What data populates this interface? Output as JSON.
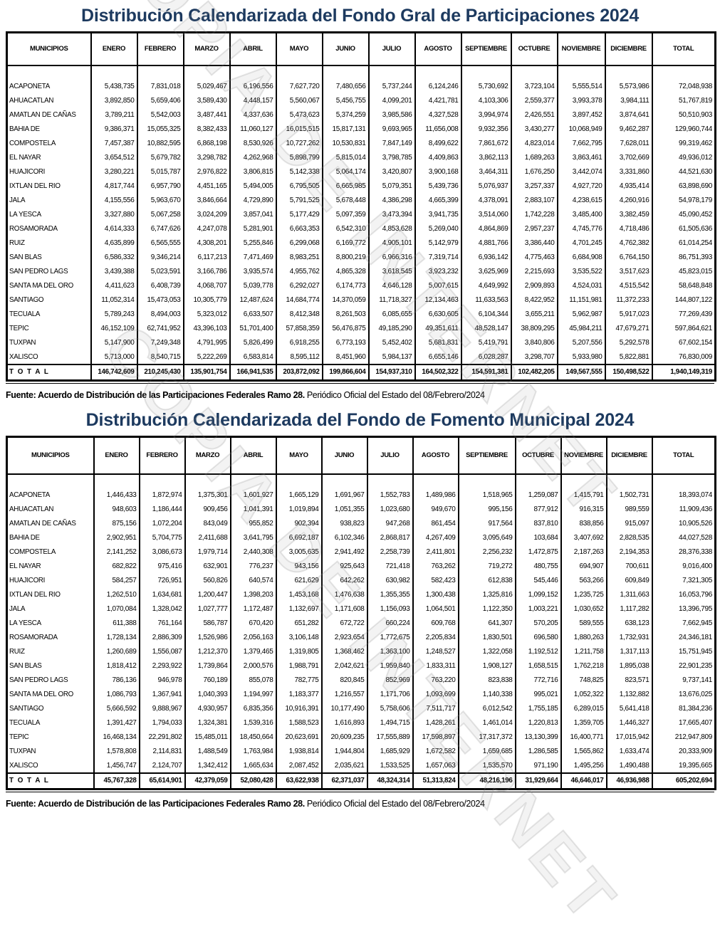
{
  "watermark": "COPIA DE INTERNET",
  "theme": {
    "title_color": "#1d3a5f",
    "border_color": "#000000"
  },
  "sections": [
    {
      "id": "t1",
      "title": "Distribución Calendarizada del Fondo Gral de Participaciones 2024",
      "columns": [
        "MUNICIPIOS",
        "ENERO",
        "FEBRERO",
        "MARZO",
        "ABRIL",
        "MAYO",
        "JUNIO",
        "JULIO",
        "AGOSTO",
        "SEPTIEMBRE",
        "OCTUBRE",
        "NOVIEMBRE",
        "DICIEMBRE",
        "TOTAL"
      ],
      "rows": [
        [
          "ACAPONETA",
          "5,438,735",
          "7,831,018",
          "5,029,467",
          "6,196,556",
          "7,627,720",
          "7,480,656",
          "5,737,244",
          "6,124,246",
          "5,730,692",
          "3,723,104",
          "5,555,514",
          "5,573,986",
          "72,048,938"
        ],
        [
          "AHUACATLAN",
          "3,892,850",
          "5,659,406",
          "3,589,430",
          "4,448,157",
          "5,560,067",
          "5,456,755",
          "4,099,201",
          "4,421,781",
          "4,103,306",
          "2,559,377",
          "3,993,378",
          "3,984,111",
          "51,767,819"
        ],
        [
          "AMATLAN DE CAÑAS",
          "3,789,211",
          "5,542,003",
          "3,487,441",
          "4,337,636",
          "5,473,623",
          "5,374,259",
          "3,985,586",
          "4,327,528",
          "3,994,974",
          "2,426,551",
          "3,897,452",
          "3,874,641",
          "50,510,903"
        ],
        [
          "BAHIA DE",
          "9,386,371",
          "15,055,325",
          "8,382,433",
          "11,060,127",
          "16,015,515",
          "15,817,131",
          "9,693,965",
          "11,656,008",
          "9,932,356",
          "3,430,277",
          "10,068,949",
          "9,462,287",
          "129,960,744"
        ],
        [
          "COMPOSTELA",
          "7,457,387",
          "10,882,595",
          "6,868,198",
          "8,530,926",
          "10,727,262",
          "10,530,831",
          "7,847,149",
          "8,499,622",
          "7,861,672",
          "4,823,014",
          "7,662,795",
          "7,628,011",
          "99,319,462"
        ],
        [
          "EL NAYAR",
          "3,654,512",
          "5,679,782",
          "3,298,782",
          "4,262,968",
          "5,898,799",
          "5,815,014",
          "3,798,785",
          "4,409,863",
          "3,862,113",
          "1,689,263",
          "3,863,461",
          "3,702,669",
          "49,936,012"
        ],
        [
          "HUAJICORI",
          "3,280,221",
          "5,015,787",
          "2,976,822",
          "3,806,815",
          "5,142,338",
          "5,064,174",
          "3,420,807",
          "3,900,168",
          "3,464,311",
          "1,676,250",
          "3,442,074",
          "3,331,860",
          "44,521,630"
        ],
        [
          "IXTLAN DEL RIO",
          "4,817,744",
          "6,957,790",
          "4,451,165",
          "5,494,005",
          "6,795,505",
          "6,665,985",
          "5,079,351",
          "5,439,736",
          "5,076,937",
          "3,257,337",
          "4,927,720",
          "4,935,414",
          "63,898,690"
        ],
        [
          "JALA",
          "4,155,556",
          "5,963,670",
          "3,846,664",
          "4,729,890",
          "5,791,525",
          "5,678,448",
          "4,386,298",
          "4,665,399",
          "4,378,091",
          "2,883,107",
          "4,238,615",
          "4,260,916",
          "54,978,179"
        ],
        [
          "LA YESCA",
          "3,327,880",
          "5,067,258",
          "3,024,209",
          "3,857,041",
          "5,177,429",
          "5,097,359",
          "3,473,394",
          "3,941,735",
          "3,514,060",
          "1,742,228",
          "3,485,400",
          "3,382,459",
          "45,090,452"
        ],
        [
          "ROSAMORADA",
          "4,614,333",
          "6,747,626",
          "4,247,078",
          "5,281,901",
          "6,663,353",
          "6,542,310",
          "4,853,628",
          "5,269,040",
          "4,864,869",
          "2,957,237",
          "4,745,776",
          "4,718,486",
          "61,505,636"
        ],
        [
          "RUIZ",
          "4,635,899",
          "6,565,555",
          "4,308,201",
          "5,255,846",
          "6,299,068",
          "6,169,772",
          "4,905,101",
          "5,142,979",
          "4,881,766",
          "3,386,440",
          "4,701,245",
          "4,762,382",
          "61,014,254"
        ],
        [
          "SAN BLAS",
          "6,586,332",
          "9,346,214",
          "6,117,213",
          "7,471,469",
          "8,983,251",
          "8,800,219",
          "6,966,316",
          "7,319,714",
          "6,936,142",
          "4,775,463",
          "6,684,908",
          "6,764,150",
          "86,751,393"
        ],
        [
          "SAN PEDRO LAGS",
          "3,439,388",
          "5,023,591",
          "3,166,786",
          "3,935,574",
          "4,955,762",
          "4,865,328",
          "3,618,545",
          "3,923,232",
          "3,625,969",
          "2,215,693",
          "3,535,522",
          "3,517,623",
          "45,823,015"
        ],
        [
          "SANTA MA DEL ORO",
          "4,411,623",
          "6,408,739",
          "4,068,707",
          "5,039,778",
          "6,292,027",
          "6,174,773",
          "4,646,128",
          "5,007,615",
          "4,649,992",
          "2,909,893",
          "4,524,031",
          "4,515,542",
          "58,648,848"
        ],
        [
          "SANTIAGO",
          "11,052,314",
          "15,473,053",
          "10,305,779",
          "12,487,624",
          "14,684,774",
          "14,370,059",
          "11,718,327",
          "12,134,463",
          "11,633,563",
          "8,422,952",
          "11,151,981",
          "11,372,233",
          "144,807,122"
        ],
        [
          "TECUALA",
          "5,789,243",
          "8,494,003",
          "5,323,012",
          "6,633,507",
          "8,412,348",
          "8,261,503",
          "6,085,655",
          "6,630,605",
          "6,104,344",
          "3,655,211",
          "5,962,987",
          "5,917,023",
          "77,269,439"
        ],
        [
          "TEPIC",
          "46,152,109",
          "62,741,952",
          "43,396,103",
          "51,701,400",
          "57,858,359",
          "56,476,875",
          "49,185,290",
          "49,351,611",
          "48,528,147",
          "38,809,295",
          "45,984,211",
          "47,679,271",
          "597,864,621"
        ],
        [
          "TUXPAN",
          "5,147,900",
          "7,249,348",
          "4,791,995",
          "5,826,499",
          "6,918,255",
          "6,773,193",
          "5,452,402",
          "5,681,831",
          "5,419,791",
          "3,840,806",
          "5,207,556",
          "5,292,578",
          "67,602,154"
        ],
        [
          "XALISCO",
          "5,713,000",
          "8,540,715",
          "5,222,269",
          "6,583,814",
          "8,595,112",
          "8,451,960",
          "5,984,137",
          "6,655,146",
          "6,028,287",
          "3,298,707",
          "5,933,980",
          "5,822,881",
          "76,830,009"
        ]
      ],
      "total_row": [
        "T O T A L",
        "146,742,609",
        "210,245,430",
        "135,901,754",
        "166,941,535",
        "203,872,092",
        "199,866,604",
        "154,937,310",
        "164,502,322",
        "154,591,381",
        "102,482,205",
        "149,567,555",
        "150,498,522",
        "1,940,149,319"
      ],
      "source_bold": "Fuente:  Acuerdo de Distribución de las Participaciones Federales Ramo 28.",
      "source_normal": " Periódico Oficial del Estado del 08/Febrero/2024"
    },
    {
      "id": "t2",
      "title": "Distribución Calendarizada del Fondo de Fomento Municipal 2024",
      "columns": [
        "MUNICIPIOS",
        "ENERO",
        "FEBRERO",
        "MARZO",
        "ABRIL",
        "MAYO",
        "JUNIO",
        "JULIO",
        "AGOSTO",
        "SEPTIEMBRE",
        "OCTUBRE",
        "NOVIEMBRE",
        "DICIEMBRE",
        "TOTAL"
      ],
      "rows": [
        [
          "ACAPONETA",
          "1,446,433",
          "1,872,974",
          "1,375,301",
          "1,601,927",
          "1,665,129",
          "1,691,967",
          "1,552,783",
          "1,489,986",
          "1,518,965",
          "1,259,087",
          "1,415,791",
          "1,502,731",
          "18,393,074"
        ],
        [
          "AHUACATLAN",
          "948,603",
          "1,186,444",
          "909,456",
          "1,041,391",
          "1,019,894",
          "1,051,355",
          "1,023,680",
          "949,670",
          "995,156",
          "877,912",
          "916,315",
          "989,559",
          "11,909,436"
        ],
        [
          "AMATLAN DE CAÑAS",
          "875,156",
          "1,072,204",
          "843,049",
          "955,852",
          "902,394",
          "938,823",
          "947,268",
          "861,454",
          "917,564",
          "837,810",
          "838,856",
          "915,097",
          "10,905,526"
        ],
        [
          "BAHIA DE",
          "2,902,951",
          "5,704,775",
          "2,411,688",
          "3,641,795",
          "6,692,187",
          "6,102,346",
          "2,868,817",
          "4,267,409",
          "3,095,649",
          "103,684",
          "3,407,692",
          "2,828,535",
          "44,027,528"
        ],
        [
          "COMPOSTELA",
          "2,141,252",
          "3,086,673",
          "1,979,714",
          "2,440,308",
          "3,005,635",
          "2,941,492",
          "2,258,739",
          "2,411,801",
          "2,256,232",
          "1,472,875",
          "2,187,263",
          "2,194,353",
          "28,376,338"
        ],
        [
          "EL NAYAR",
          "682,822",
          "975,416",
          "632,901",
          "776,237",
          "943,156",
          "925,643",
          "721,418",
          "763,262",
          "719,272",
          "480,755",
          "694,907",
          "700,611",
          "9,016,400"
        ],
        [
          "HUAJICORI",
          "584,257",
          "726,951",
          "560,826",
          "640,574",
          "621,629",
          "642,262",
          "630,982",
          "582,423",
          "612,838",
          "545,446",
          "563,266",
          "609,849",
          "7,321,305"
        ],
        [
          "IXTLAN DEL RIO",
          "1,262,510",
          "1,634,681",
          "1,200,447",
          "1,398,203",
          "1,453,168",
          "1,476,638",
          "1,355,355",
          "1,300,438",
          "1,325,816",
          "1,099,152",
          "1,235,725",
          "1,311,663",
          "16,053,796"
        ],
        [
          "JALA",
          "1,070,084",
          "1,328,042",
          "1,027,777",
          "1,172,487",
          "1,132,697",
          "1,171,608",
          "1,156,093",
          "1,064,501",
          "1,122,350",
          "1,003,221",
          "1,030,652",
          "1,117,282",
          "13,396,795"
        ],
        [
          "LA YESCA",
          "611,388",
          "761,164",
          "586,787",
          "670,420",
          "651,282",
          "672,722",
          "660,224",
          "609,768",
          "641,307",
          "570,205",
          "589,555",
          "638,123",
          "7,662,945"
        ],
        [
          "ROSAMORADA",
          "1,728,134",
          "2,886,309",
          "1,526,986",
          "2,056,163",
          "3,106,148",
          "2,923,654",
          "1,772,675",
          "2,205,834",
          "1,830,501",
          "696,580",
          "1,880,263",
          "1,732,931",
          "24,346,181"
        ],
        [
          "RUIZ",
          "1,260,689",
          "1,556,087",
          "1,212,370",
          "1,379,465",
          "1,319,805",
          "1,368,462",
          "1,363,100",
          "1,248,527",
          "1,322,058",
          "1,192,512",
          "1,211,758",
          "1,317,113",
          "15,751,945"
        ],
        [
          "SAN BLAS",
          "1,818,412",
          "2,293,922",
          "1,739,864",
          "2,000,576",
          "1,988,791",
          "2,042,621",
          "1,959,840",
          "1,833,311",
          "1,908,127",
          "1,658,515",
          "1,762,218",
          "1,895,038",
          "22,901,235"
        ],
        [
          "SAN PEDRO LAGS",
          "786,136",
          "946,978",
          "760,189",
          "855,078",
          "782,775",
          "820,845",
          "852,969",
          "763,220",
          "823,838",
          "772,716",
          "748,825",
          "823,571",
          "9,737,141"
        ],
        [
          "SANTA MA DEL ORO",
          "1,086,793",
          "1,367,941",
          "1,040,393",
          "1,194,997",
          "1,183,377",
          "1,216,557",
          "1,171,706",
          "1,093,699",
          "1,140,338",
          "995,021",
          "1,052,322",
          "1,132,882",
          "13,676,025"
        ],
        [
          "SANTIAGO",
          "5,666,592",
          "9,888,967",
          "4,930,957",
          "6,835,356",
          "10,916,391",
          "10,177,490",
          "5,758,606",
          "7,511,717",
          "6,012,542",
          "1,755,185",
          "6,289,015",
          "5,641,418",
          "81,384,236"
        ],
        [
          "TECUALA",
          "1,391,427",
          "1,794,033",
          "1,324,381",
          "1,539,316",
          "1,588,523",
          "1,616,893",
          "1,494,715",
          "1,428,261",
          "1,461,014",
          "1,220,813",
          "1,359,705",
          "1,446,327",
          "17,665,407"
        ],
        [
          "TEPIC",
          "16,468,134",
          "22,291,802",
          "15,485,011",
          "18,450,664",
          "20,623,691",
          "20,609,235",
          "17,555,889",
          "17,598,897",
          "17,317,372",
          "13,130,399",
          "16,400,771",
          "17,015,942",
          "212,947,809"
        ],
        [
          "TUXPAN",
          "1,578,808",
          "2,114,831",
          "1,488,549",
          "1,763,984",
          "1,938,814",
          "1,944,804",
          "1,685,929",
          "1,672,582",
          "1,659,685",
          "1,286,585",
          "1,565,862",
          "1,633,474",
          "20,333,909"
        ],
        [
          "XALISCO",
          "1,456,747",
          "2,124,707",
          "1,342,412",
          "1,665,634",
          "2,087,452",
          "2,035,621",
          "1,533,525",
          "1,657,063",
          "1,535,570",
          "971,190",
          "1,495,256",
          "1,490,488",
          "19,395,665"
        ]
      ],
      "total_row": [
        "T O T A L",
        "45,767,328",
        "65,614,901",
        "42,379,059",
        "52,080,428",
        "63,622,938",
        "62,371,037",
        "48,324,314",
        "51,313,824",
        "48,216,196",
        "31,929,664",
        "46,646,017",
        "46,936,988",
        "605,202,694"
      ],
      "source_bold": "Fuente:  Acuerdo de Distribución de las Participaciones Federales Ramo 28.",
      "source_normal": " Periódico Oficial del Estado del 08/Febrero/2024"
    }
  ]
}
